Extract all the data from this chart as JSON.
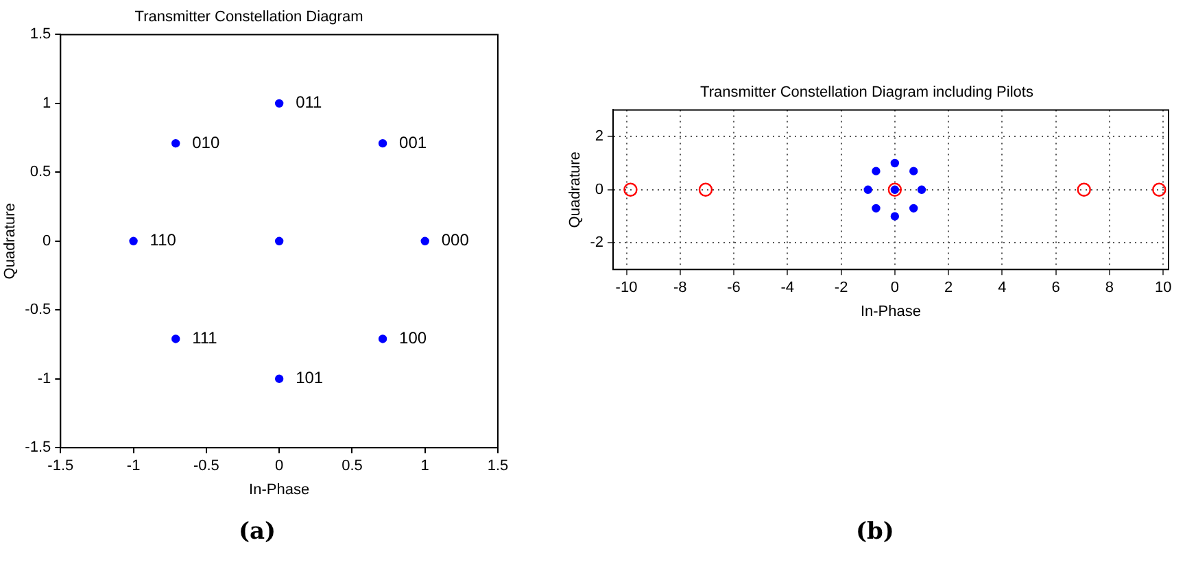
{
  "chart_data": [
    {
      "type": "scatter",
      "title": "Transmitter Constellation Diagram",
      "xlabel": "In-Phase",
      "ylabel": "Quadrature",
      "xlim": [
        -1.5,
        1.5
      ],
      "ylim": [
        -1.5,
        1.5
      ],
      "xticks": [
        -1.5,
        -1,
        -0.5,
        0,
        0.5,
        1,
        1.5
      ],
      "yticks": [
        -1.5,
        -1,
        -0.5,
        0,
        0.5,
        1,
        1.5
      ],
      "grid": false,
      "legend": false,
      "marker": "circle",
      "series": [
        {
          "color": "#0000ff",
          "x": [
            1,
            0.71,
            0,
            -0.71,
            -1,
            -0.71,
            0,
            0.71,
            0
          ],
          "values": [
            0,
            0.71,
            1,
            0.71,
            0,
            -0.71,
            -1,
            -0.71,
            0
          ]
        }
      ],
      "annotations": [
        {
          "text": "000",
          "x": 1,
          "y": 0
        },
        {
          "text": "001",
          "x": 0.71,
          "y": 0.71
        },
        {
          "text": "011",
          "x": 0,
          "y": 1
        },
        {
          "text": "010",
          "x": -0.71,
          "y": 0.71
        },
        {
          "text": "110",
          "x": -1,
          "y": 0
        },
        {
          "text": "111",
          "x": -0.71,
          "y": -0.71
        },
        {
          "text": "101",
          "x": 0,
          "y": -1
        },
        {
          "text": "100",
          "x": 0.71,
          "y": -0.71
        },
        "(a)"
      ]
    },
    {
      "type": "scatter",
      "title": "Transmitter Constellation Diagram including Pilots",
      "xlabel": "In-Phase",
      "ylabel": "Quadrature",
      "xlim": [
        -10.5,
        10.2
      ],
      "ylim": [
        -3,
        3
      ],
      "xticks": [
        -10,
        -8,
        -6,
        -4,
        -2,
        0,
        2,
        4,
        6,
        8,
        10
      ],
      "yticks": [
        -2,
        0,
        2
      ],
      "grid": true,
      "legend": false,
      "marker": "circle",
      "series": [
        {
          "color": "#0000ff",
          "x": [
            1,
            0.7,
            0,
            -0.7,
            -1,
            -0.7,
            0,
            0.7,
            0
          ],
          "values": [
            0,
            0.7,
            1,
            0.7,
            0,
            -0.7,
            -1,
            -0.7,
            0
          ]
        },
        {
          "color": "#ff0000",
          "x": [
            -9.85,
            -7.05,
            0,
            7.05,
            9.85
          ],
          "values": [
            0,
            0,
            0,
            0,
            0
          ]
        }
      ],
      "annotations": [
        "(b)"
      ]
    }
  ]
}
